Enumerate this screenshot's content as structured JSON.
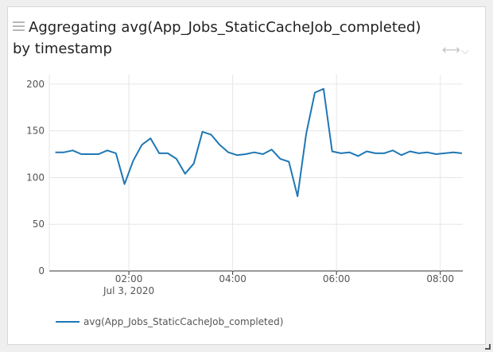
{
  "panel": {
    "title": "Aggregating avg(App_Jobs_StaticCacheJob_completed) by timestamp",
    "menu_icon": "hamburger-menu-icon",
    "expand_icon": "horizontal-arrows-icon",
    "dropdown_icon": "chevron-down-icon",
    "resize_icon": "resize-corner-icon"
  },
  "chart_data": {
    "type": "line",
    "title": "Aggregating avg(App_Jobs_StaticCacheJob_completed) by timestamp",
    "xlabel": "",
    "ylabel": "",
    "x_range": [
      "00:28",
      "08:26"
    ],
    "ylim": [
      0,
      205
    ],
    "y_ticks": [
      0,
      50,
      100,
      150,
      200
    ],
    "x_ticks": [
      {
        "label": "02:00",
        "sublabel": "Jul 3, 2020",
        "time": "02:00"
      },
      {
        "label": "04:00",
        "sublabel": "",
        "time": "04:00"
      },
      {
        "label": "06:00",
        "sublabel": "",
        "time": "06:00"
      },
      {
        "label": "08:00",
        "sublabel": "",
        "time": "08:00"
      }
    ],
    "grid": true,
    "legend_position": "bottom-left",
    "series": [
      {
        "name": "avg(App_Jobs_StaticCacheJob_completed)",
        "color": "#1f77b4",
        "x": [
          "00:35",
          "00:45",
          "00:55",
          "01:05",
          "01:15",
          "01:25",
          "01:35",
          "01:45",
          "01:55",
          "02:05",
          "02:15",
          "02:25",
          "02:35",
          "02:45",
          "02:55",
          "03:05",
          "03:15",
          "03:25",
          "03:35",
          "03:45",
          "03:55",
          "04:05",
          "04:15",
          "04:25",
          "04:35",
          "04:45",
          "04:55",
          "05:05",
          "05:15",
          "05:25",
          "05:35",
          "05:45",
          "05:55",
          "06:05",
          "06:15",
          "06:25",
          "06:35",
          "06:45",
          "06:55",
          "07:05",
          "07:15",
          "07:25",
          "07:35",
          "07:45",
          "07:55",
          "08:05",
          "08:15",
          "08:25"
        ],
        "y": [
          127,
          127,
          129,
          125,
          125,
          125,
          129,
          126,
          93,
          118,
          135,
          142,
          126,
          126,
          120,
          104,
          115,
          149,
          146,
          135,
          127,
          124,
          125,
          127,
          125,
          130,
          120,
          117,
          80,
          147,
          191,
          195,
          128,
          126,
          127,
          123,
          128,
          126,
          126,
          129,
          124,
          128,
          126,
          127,
          125,
          126,
          127,
          126
        ]
      }
    ]
  }
}
